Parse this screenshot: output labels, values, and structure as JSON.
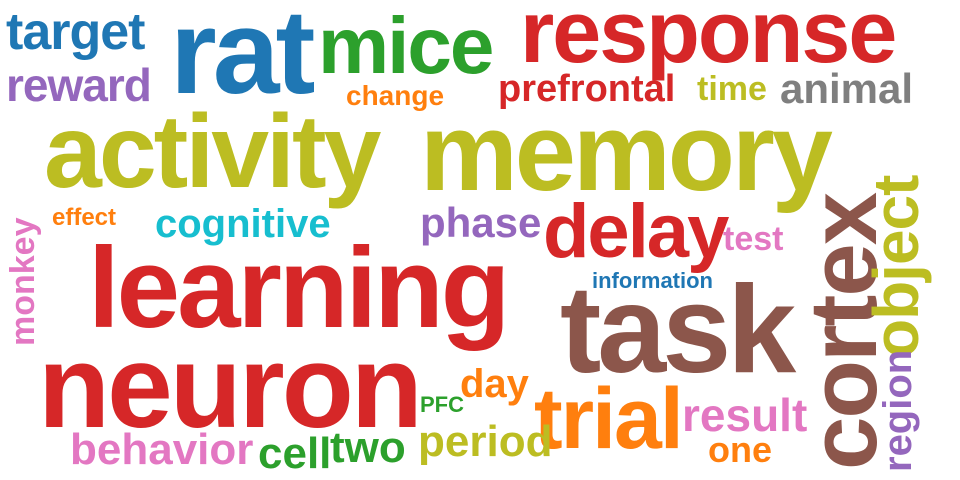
{
  "words": {
    "target": {
      "text": "target",
      "color": "#1f77b4"
    },
    "rat": {
      "text": "rat",
      "color": "#1f77b4"
    },
    "mice": {
      "text": "mice",
      "color": "#2ca02c"
    },
    "response": {
      "text": "response",
      "color": "#d62728"
    },
    "reward": {
      "text": "reward",
      "color": "#9467bd"
    },
    "change": {
      "text": "change",
      "color": "#ff7f0e"
    },
    "prefrontal": {
      "text": "prefrontal",
      "color": "#d62728"
    },
    "time": {
      "text": "time",
      "color": "#bcbd22"
    },
    "animal": {
      "text": "animal",
      "color": "#7f7f7f"
    },
    "activity": {
      "text": "activity",
      "color": "#bcbd22"
    },
    "memory": {
      "text": "memory",
      "color": "#bcbd22"
    },
    "effect": {
      "text": "effect",
      "color": "#ff7f0e"
    },
    "cognitive": {
      "text": "cognitive",
      "color": "#17becf"
    },
    "phase": {
      "text": "phase",
      "color": "#9467bd"
    },
    "delay": {
      "text": "delay",
      "color": "#d62728"
    },
    "test": {
      "text": "test",
      "color": "#e377c2"
    },
    "learning": {
      "text": "learning",
      "color": "#d62728"
    },
    "information": {
      "text": "information",
      "color": "#1f77b4"
    },
    "task": {
      "text": "task",
      "color": "#8c564b"
    },
    "neuron": {
      "text": "neuron",
      "color": "#d62728"
    },
    "day": {
      "text": "day",
      "color": "#ff7f0e"
    },
    "PFC": {
      "text": "PFC",
      "color": "#2ca02c"
    },
    "trial": {
      "text": "trial",
      "color": "#ff7f0e"
    },
    "result": {
      "text": "result",
      "color": "#e377c2"
    },
    "period": {
      "text": "period",
      "color": "#bcbd22"
    },
    "one": {
      "text": "one",
      "color": "#ff7f0e"
    },
    "behavior": {
      "text": "behavior",
      "color": "#e377c2"
    },
    "cell": {
      "text": "cell",
      "color": "#2ca02c"
    },
    "two": {
      "text": "two",
      "color": "#2ca02c"
    },
    "monkey": {
      "text": "monkey",
      "color": "#e377c2"
    },
    "cortex": {
      "text": "cortex",
      "color": "#8c564b"
    },
    "object": {
      "text": "object",
      "color": "#bcbd22"
    },
    "region": {
      "text": "region",
      "color": "#9467bd"
    }
  }
}
